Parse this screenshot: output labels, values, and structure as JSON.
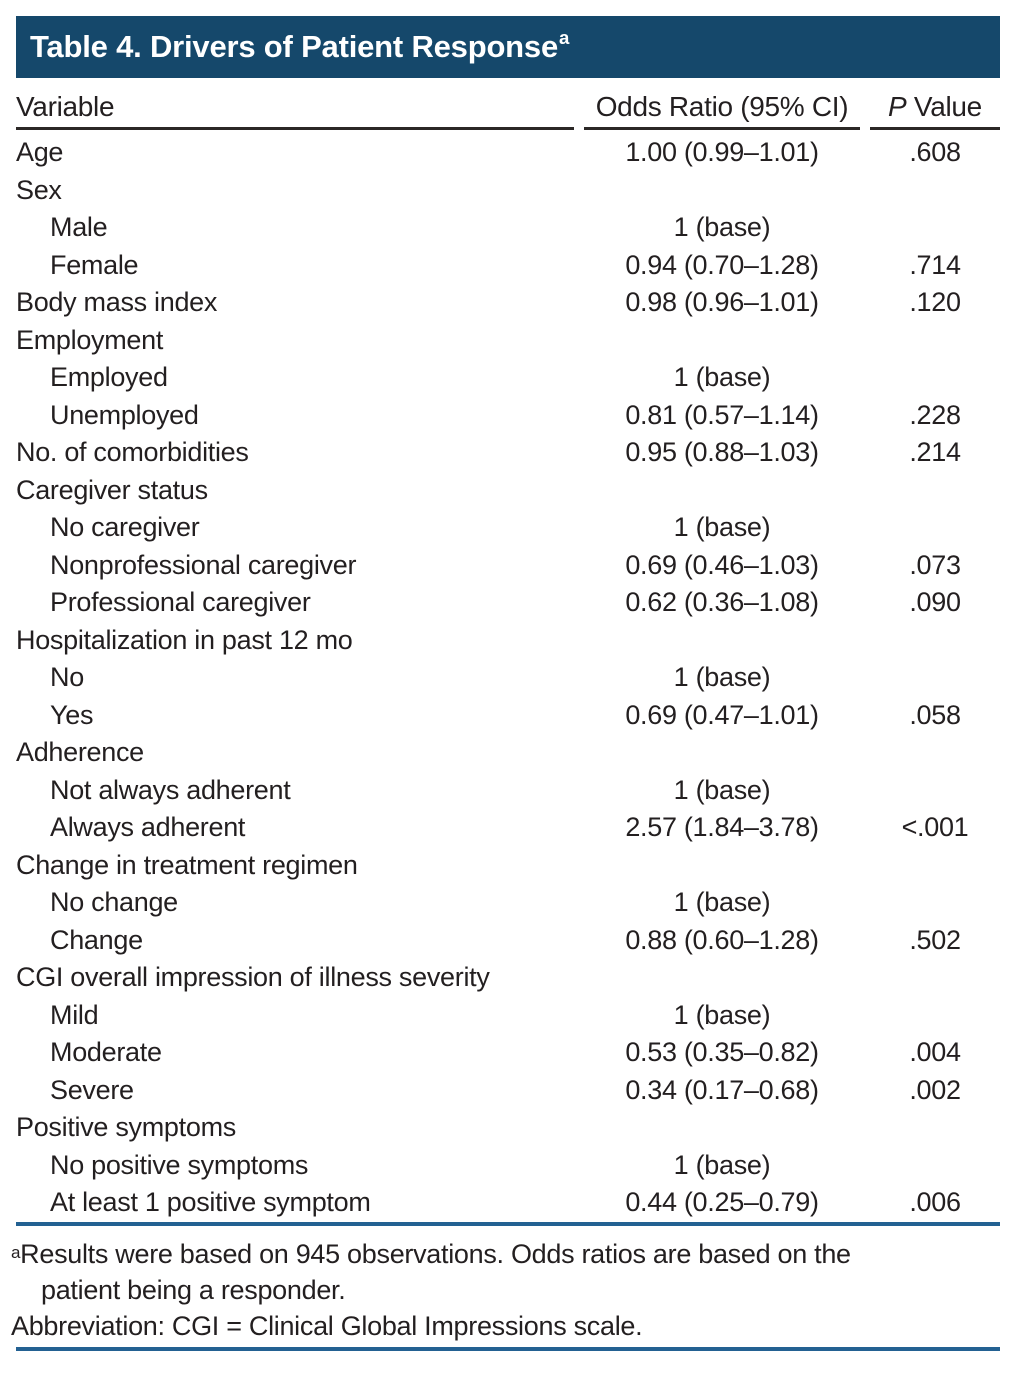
{
  "colors": {
    "header_bar": "#15486b",
    "rule_blue": "#236192",
    "text": "#231f20",
    "header_rule": "#2b2826"
  },
  "table": {
    "title": "Table 4. Drivers of Patient Response",
    "title_superscript": "a",
    "header": {
      "variable": "Variable",
      "odds_ratio": "Odds Ratio (95% CI)",
      "p_italic": "P",
      "p_rest": " Value"
    },
    "rows": [
      {
        "label": "Age",
        "indent": false,
        "or": "1.00 (0.99–1.01)",
        "p": ".608"
      },
      {
        "label": "Sex",
        "indent": false,
        "or": "",
        "p": ""
      },
      {
        "label": "Male",
        "indent": true,
        "or": "1 (base)",
        "p": ""
      },
      {
        "label": "Female",
        "indent": true,
        "or": "0.94 (0.70–1.28)",
        "p": ".714"
      },
      {
        "label": "Body mass index",
        "indent": false,
        "or": "0.98 (0.96–1.01)",
        "p": ".120"
      },
      {
        "label": "Employment",
        "indent": false,
        "or": "",
        "p": ""
      },
      {
        "label": "Employed",
        "indent": true,
        "or": "1 (base)",
        "p": ""
      },
      {
        "label": "Unemployed",
        "indent": true,
        "or": "0.81 (0.57–1.14)",
        "p": ".228"
      },
      {
        "label": "No. of comorbidities",
        "indent": false,
        "or": "0.95 (0.88–1.03)",
        "p": ".214"
      },
      {
        "label": "Caregiver status",
        "indent": false,
        "or": "",
        "p": ""
      },
      {
        "label": "No caregiver",
        "indent": true,
        "or": "1 (base)",
        "p": ""
      },
      {
        "label": "Nonprofessional caregiver",
        "indent": true,
        "or": "0.69 (0.46–1.03)",
        "p": ".073"
      },
      {
        "label": "Professional caregiver",
        "indent": true,
        "or": "0.62 (0.36–1.08)",
        "p": ".090"
      },
      {
        "label": "Hospitalization in past 12 mo",
        "indent": false,
        "or": "",
        "p": ""
      },
      {
        "label": "No",
        "indent": true,
        "or": "1 (base)",
        "p": ""
      },
      {
        "label": "Yes",
        "indent": true,
        "or": "0.69 (0.47–1.01)",
        "p": ".058"
      },
      {
        "label": "Adherence",
        "indent": false,
        "or": "",
        "p": ""
      },
      {
        "label": "Not always adherent",
        "indent": true,
        "or": "1 (base)",
        "p": ""
      },
      {
        "label": "Always adherent",
        "indent": true,
        "or": "2.57 (1.84–3.78)",
        "p": "<.001"
      },
      {
        "label": "Change in treatment regimen",
        "indent": false,
        "or": "",
        "p": ""
      },
      {
        "label": "No change",
        "indent": true,
        "or": "1 (base)",
        "p": ""
      },
      {
        "label": "Change",
        "indent": true,
        "or": "0.88 (0.60–1.28)",
        "p": ".502"
      },
      {
        "label": "CGI overall impression of illness severity",
        "indent": false,
        "or": "",
        "p": ""
      },
      {
        "label": "Mild",
        "indent": true,
        "or": "1 (base)",
        "p": ""
      },
      {
        "label": "Moderate",
        "indent": true,
        "or": "0.53 (0.35–0.82)",
        "p": ".004"
      },
      {
        "label": "Severe",
        "indent": true,
        "or": "0.34 (0.17–0.68)",
        "p": ".002"
      },
      {
        "label": "Positive symptoms",
        "indent": false,
        "or": "",
        "p": ""
      },
      {
        "label": "No positive symptoms",
        "indent": true,
        "or": "1 (base)",
        "p": ""
      },
      {
        "label": "At least 1 positive symptom",
        "indent": true,
        "or": "0.44 (0.25–0.79)",
        "p": ".006"
      }
    ],
    "footnotes": {
      "note_a_sup": "a",
      "note_a_line1": "Results were based on 945 observations. Odds ratios are based on the",
      "note_a_line2": "patient being a responder.",
      "abbreviation": "Abbreviation: CGI = Clinical Global Impressions scale."
    }
  }
}
